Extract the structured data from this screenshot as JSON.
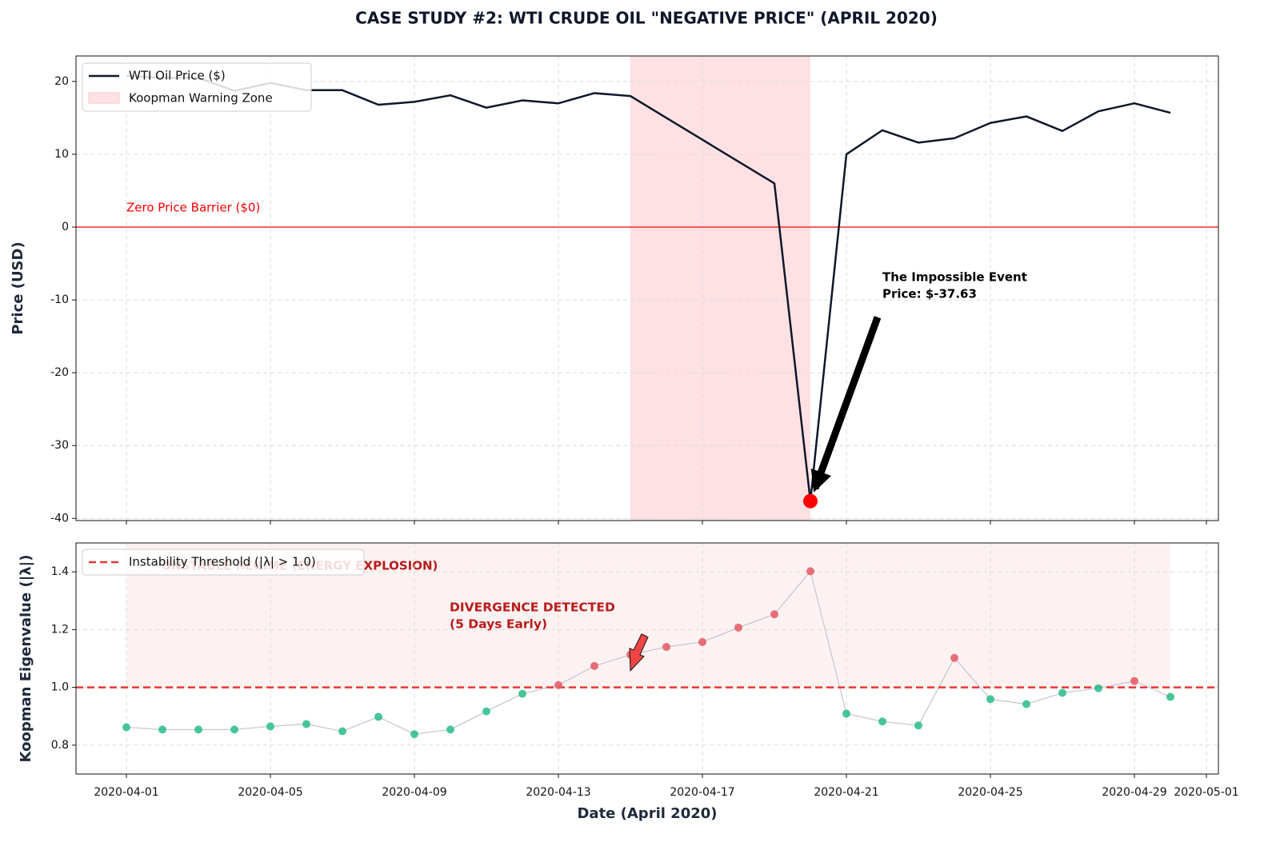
{
  "chart_data": [
    {
      "type": "line",
      "title": "CASE STUDY #2: WTI CRUDE OIL \"NEGATIVE PRICE\" (APRIL 2020)",
      "ylabel": "Price (USD)",
      "x": [
        "2020-04-01",
        "2020-04-02",
        "2020-04-03",
        "2020-04-04",
        "2020-04-05",
        "2020-04-06",
        "2020-04-07",
        "2020-04-08",
        "2020-04-09",
        "2020-04-10",
        "2020-04-11",
        "2020-04-12",
        "2020-04-13",
        "2020-04-14",
        "2020-04-15",
        "2020-04-16",
        "2020-04-17",
        "2020-04-18",
        "2020-04-19",
        "2020-04-20",
        "2020-04-21",
        "2020-04-22",
        "2020-04-23",
        "2020-04-24",
        "2020-04-25",
        "2020-04-26",
        "2020-04-27",
        "2020-04-28",
        "2020-04-29",
        "2020-04-30"
      ],
      "series": [
        {
          "name": "WTI Oil Price ($)",
          "color": "#0f172a",
          "values": [
            20.8,
            20.5,
            20.5,
            18.7,
            19.8,
            18.8,
            18.8,
            16.8,
            17.2,
            18.1,
            16.4,
            17.4,
            17.0,
            18.4,
            18.0,
            15.0,
            12.0,
            9.0,
            6.0,
            -37.63,
            10.0,
            13.3,
            11.6,
            12.2,
            14.3,
            15.2,
            13.2,
            15.9,
            17.0,
            15.7
          ]
        }
      ],
      "zone": {
        "name": "Koopman Warning Zone",
        "start": "2020-04-15",
        "end": "2020-04-20",
        "color": "#ffe1e4"
      },
      "hline": {
        "label": "Zero Price Barrier ($0)",
        "value": 0,
        "color": "#ff0000"
      },
      "annotation": {
        "text": [
          "The Impossible Event",
          "Price: $-37.63"
        ],
        "color": "#000000"
      },
      "event_color": "#ff0000",
      "xlim": [
        "2020-03-30T14:24",
        "2020-05-01T08:00"
      ],
      "xticks": [
        "2020-04-01",
        "2020-04-05",
        "2020-04-09",
        "2020-04-13",
        "2020-04-17",
        "2020-04-21",
        "2020-04-25",
        "2020-04-29",
        "2020-05-01"
      ],
      "ylim": [
        -40.3,
        23.5
      ],
      "yticks": [
        -40,
        -30,
        -20,
        -10,
        0,
        10,
        20
      ],
      "grid": true,
      "legend": "upper left"
    },
    {
      "type": "line",
      "markers": true,
      "ylabel": "Koopman Eigenvalue (|λ|)",
      "xlabel": "Date (April 2020)",
      "x": [
        "2020-04-01",
        "2020-04-02",
        "2020-04-03",
        "2020-04-04",
        "2020-04-05",
        "2020-04-06",
        "2020-04-07",
        "2020-04-08",
        "2020-04-09",
        "2020-04-10",
        "2020-04-11",
        "2020-04-12",
        "2020-04-13",
        "2020-04-14",
        "2020-04-15",
        "2020-04-16",
        "2020-04-17",
        "2020-04-18",
        "2020-04-19",
        "2020-04-20",
        "2020-04-21",
        "2020-04-22",
        "2020-04-23",
        "2020-04-24",
        "2020-04-25",
        "2020-04-26",
        "2020-04-27",
        "2020-04-28",
        "2020-04-29",
        "2020-04-30"
      ],
      "series": [
        {
          "color": "#c6c8d4",
          "values": [
            0.862,
            0.854,
            0.854,
            0.854,
            0.865,
            0.873,
            0.848,
            0.898,
            0.838,
            0.854,
            0.917,
            0.978,
            1.008,
            1.074,
            1.113,
            1.14,
            1.157,
            1.207,
            1.253,
            1.402,
            0.909,
            0.882,
            0.868,
            1.102,
            0.959,
            0.942,
            0.981,
            0.997,
            1.022,
            0.967
          ]
        }
      ],
      "stable_color": "#34c08f",
      "unstable_color": "#e5606a",
      "threshold": {
        "name": "Instability Threshold (|λ| > 1.0)",
        "value": 1.0,
        "color": "#e53935"
      },
      "region": {
        "label": "UNSTABLE REGIME (ENERGY EXPLOSION)",
        "start": "2020-04-01",
        "end": "2020-04-30",
        "color": "#fdf2f2"
      },
      "annotation": {
        "text": [
          "DIVERGENCE DETECTED",
          "(5 Days Early)"
        ],
        "x": "2020-04-15",
        "color": "#b91c1c"
      },
      "xlim": [
        "2020-03-30T14:24",
        "2020-05-01T08:00"
      ],
      "xticks": [
        "2020-04-01",
        "2020-04-05",
        "2020-04-09",
        "2020-04-13",
        "2020-04-17",
        "2020-04-21",
        "2020-04-25",
        "2020-04-29",
        "2020-05-01"
      ],
      "ylim": [
        0.7,
        1.5
      ],
      "yticks": [
        0.8,
        {
          "value": 1.0,
          "label": "1.0"
        },
        1.2,
        1.4
      ],
      "grid": true,
      "legend": "upper left"
    }
  ]
}
